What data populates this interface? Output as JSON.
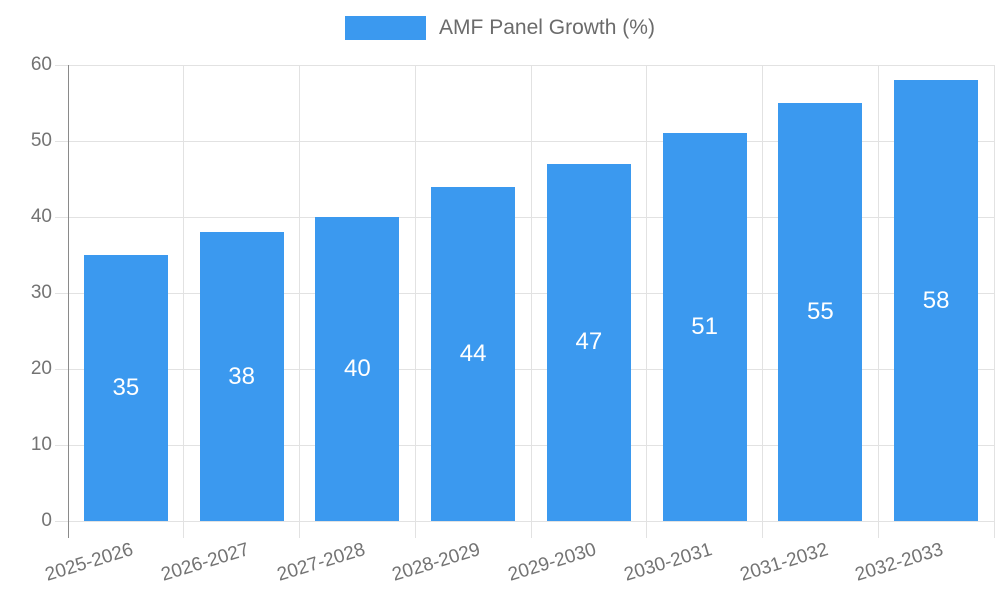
{
  "legend": {
    "label": "AMF Panel Growth (%)"
  },
  "colors": {
    "bar": "#3b99ef",
    "grid": "#e2e2e2",
    "axis": "#8a8a8a",
    "tick_label": "#737373",
    "legend_text": "#6b6b6b",
    "bar_label": "#ffffff",
    "background": "#ffffff"
  },
  "chart_data": {
    "type": "bar",
    "title": "AMF Panel Growth (%)",
    "categories": [
      "2025-2026",
      "2026-2027",
      "2027-2028",
      "2028-2029",
      "2029-2030",
      "2030-2031",
      "2031-2032",
      "2032-2033"
    ],
    "values": [
      35,
      38,
      40,
      44,
      47,
      51,
      55,
      58
    ],
    "bar_value_labels": [
      "35",
      "38",
      "40",
      "44",
      "47",
      "51",
      "55",
      "58"
    ],
    "xlabel": "",
    "ylabel": "",
    "ylim": [
      0,
      60
    ],
    "yticks": [
      0,
      10,
      20,
      30,
      40,
      50,
      60
    ],
    "grid": true,
    "legend_position": "top",
    "x_label_rotation_deg": -17
  }
}
